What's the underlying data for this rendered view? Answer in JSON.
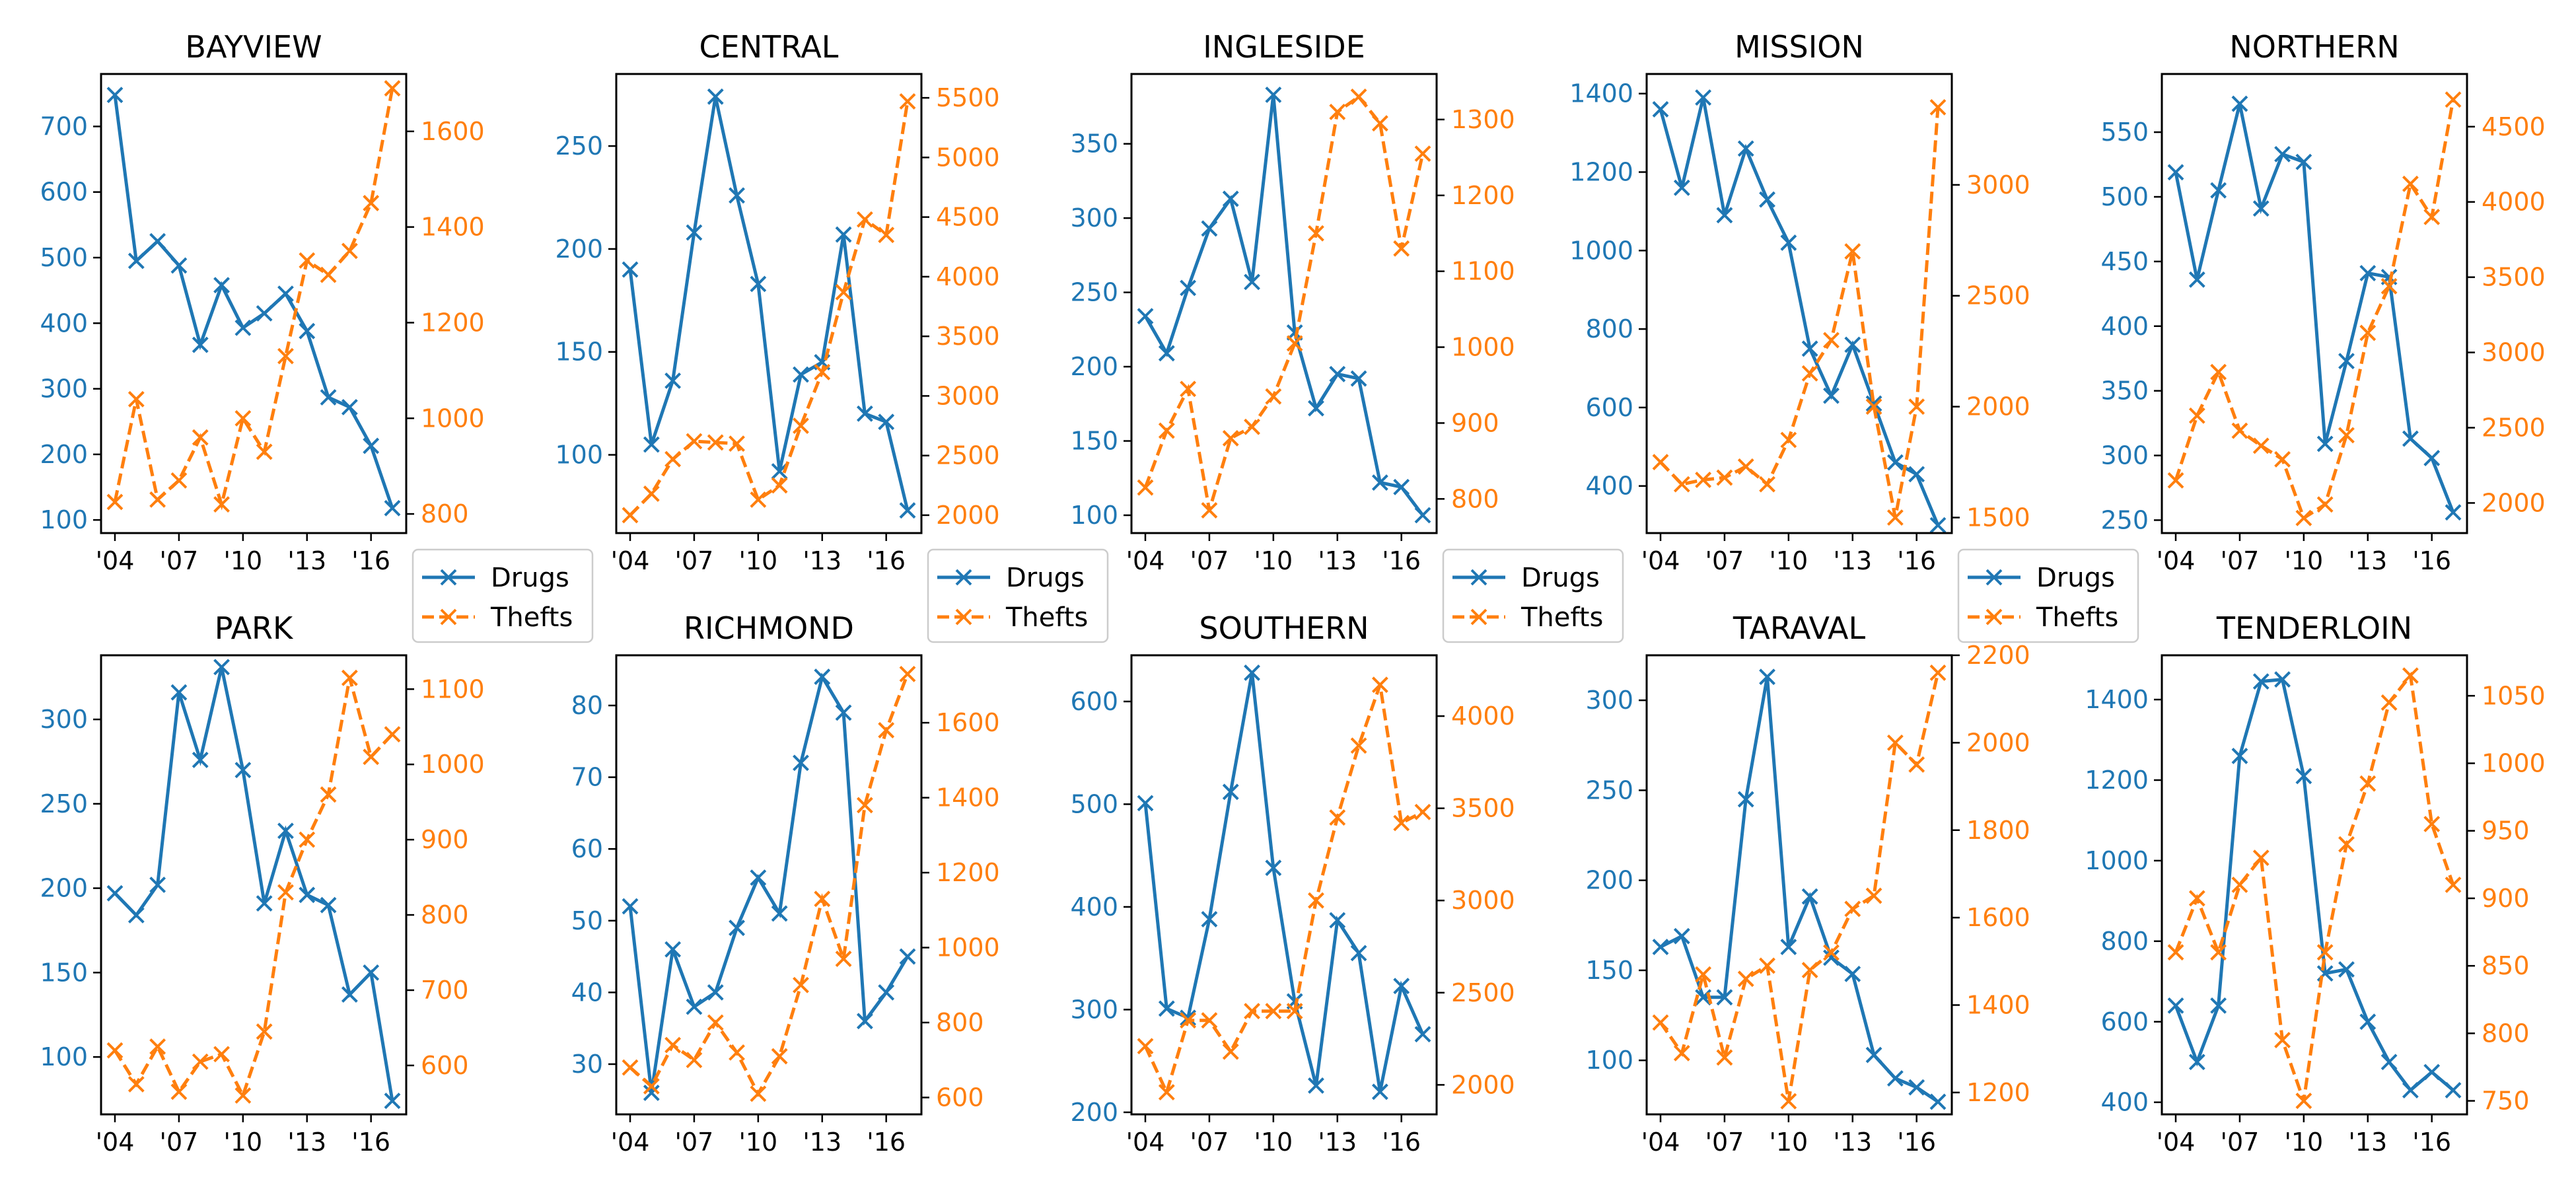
{
  "chart_data": [
    {
      "type": "line",
      "title": "BAYVIEW",
      "categories": [
        "'04",
        "'05",
        "'06",
        "'07",
        "'08",
        "'09",
        "'10",
        "'11",
        "'12",
        "'13",
        "'14",
        "'15",
        "'16",
        "'17"
      ],
      "x_tick_labels": [
        "'04",
        "'07",
        "'10",
        "'13",
        "'16"
      ],
      "left_ylim": [
        80,
        780
      ],
      "left_ticks": [
        100,
        200,
        300,
        400,
        500,
        600,
        700
      ],
      "right_ylim": [
        760,
        1720
      ],
      "right_ticks": [
        800,
        1000,
        1200,
        1400,
        1600
      ],
      "series": [
        {
          "name": "Drugs",
          "axis": "left",
          "values": [
            748,
            495,
            525,
            488,
            367,
            458,
            393,
            415,
            445,
            388,
            287,
            272,
            213,
            118
          ]
        },
        {
          "name": "Thefts",
          "axis": "right",
          "values": [
            825,
            1040,
            830,
            870,
            960,
            820,
            1000,
            930,
            1130,
            1330,
            1300,
            1350,
            1450,
            1690
          ]
        }
      ]
    },
    {
      "type": "line",
      "title": "CENTRAL",
      "categories": [
        "'04",
        "'05",
        "'06",
        "'07",
        "'08",
        "'09",
        "'10",
        "'11",
        "'12",
        "'13",
        "'14",
        "'15",
        "'16",
        "'17"
      ],
      "x_tick_labels": [
        "'04",
        "'07",
        "'10",
        "'13",
        "'16"
      ],
      "left_ylim": [
        62,
        285
      ],
      "left_ticks": [
        100,
        150,
        200,
        250
      ],
      "right_ylim": [
        1850,
        5700
      ],
      "right_ticks": [
        2000,
        2500,
        3000,
        3500,
        4000,
        4500,
        5000,
        5500
      ],
      "series": [
        {
          "name": "Drugs",
          "axis": "left",
          "values": [
            190,
            105,
            136,
            208,
            274,
            226,
            183,
            92,
            139,
            145,
            207,
            120,
            116,
            73
          ]
        },
        {
          "name": "Thefts",
          "axis": "right",
          "values": [
            2000,
            2180,
            2470,
            2620,
            2610,
            2600,
            2130,
            2250,
            2750,
            3200,
            3870,
            4480,
            4350,
            5470
          ]
        }
      ]
    },
    {
      "type": "line",
      "title": "INGLESIDE",
      "categories": [
        "'04",
        "'05",
        "'06",
        "'07",
        "'08",
        "'09",
        "'10",
        "'11",
        "'12",
        "'13",
        "'14",
        "'15",
        "'16",
        "'17"
      ],
      "x_tick_labels": [
        "'04",
        "'07",
        "'10",
        "'13",
        "'16"
      ],
      "left_ylim": [
        88,
        397
      ],
      "left_ticks": [
        100,
        150,
        200,
        250,
        300,
        350
      ],
      "right_ylim": [
        755,
        1360
      ],
      "right_ticks": [
        800,
        900,
        1000,
        1100,
        1200,
        1300
      ],
      "series": [
        {
          "name": "Drugs",
          "axis": "left",
          "values": [
            234,
            209,
            253,
            293,
            313,
            257,
            383,
            223,
            172,
            195,
            192,
            122,
            119,
            100
          ]
        },
        {
          "name": "Thefts",
          "axis": "right",
          "values": [
            815,
            890,
            945,
            785,
            880,
            895,
            935,
            1005,
            1150,
            1310,
            1330,
            1295,
            1130,
            1255
          ]
        }
      ]
    },
    {
      "type": "line",
      "title": "MISSION",
      "categories": [
        "'04",
        "'05",
        "'06",
        "'07",
        "'08",
        "'09",
        "'10",
        "'11",
        "'12",
        "'13",
        "'14",
        "'15",
        "'16",
        "'17"
      ],
      "x_tick_labels": [
        "'04",
        "'07",
        "'10",
        "'13",
        "'16"
      ],
      "left_ylim": [
        280,
        1450
      ],
      "left_ticks": [
        400,
        600,
        800,
        1000,
        1200,
        1400
      ],
      "right_ylim": [
        1430,
        3500
      ],
      "right_ticks": [
        1500,
        2000,
        2500,
        3000
      ],
      "series": [
        {
          "name": "Drugs",
          "axis": "left",
          "values": [
            1360,
            1160,
            1390,
            1090,
            1260,
            1130,
            1020,
            750,
            630,
            760,
            610,
            460,
            430,
            300
          ]
        },
        {
          "name": "Thefts",
          "axis": "right",
          "values": [
            1750,
            1650,
            1670,
            1680,
            1730,
            1650,
            1850,
            2150,
            2300,
            2700,
            2000,
            1500,
            2000,
            3350
          ]
        }
      ]
    },
    {
      "type": "line",
      "title": "NORTHERN",
      "categories": [
        "'04",
        "'05",
        "'06",
        "'07",
        "'08",
        "'09",
        "'10",
        "'11",
        "'12",
        "'13",
        "'14",
        "'15",
        "'16",
        "'17"
      ],
      "x_tick_labels": [
        "'04",
        "'07",
        "'10",
        "'13",
        "'16"
      ],
      "left_ylim": [
        240,
        595
      ],
      "left_ticks": [
        250,
        300,
        350,
        400,
        450,
        500,
        550
      ],
      "right_ylim": [
        1800,
        4850
      ],
      "right_ticks": [
        2000,
        2500,
        3000,
        3500,
        4000,
        4500
      ],
      "series": [
        {
          "name": "Drugs",
          "axis": "left",
          "values": [
            519,
            436,
            505,
            572,
            491,
            533,
            527,
            309,
            373,
            441,
            438,
            313,
            298,
            256
          ]
        },
        {
          "name": "Thefts",
          "axis": "right",
          "values": [
            2150,
            2580,
            2870,
            2480,
            2380,
            2290,
            1900,
            1990,
            2450,
            3130,
            3440,
            4120,
            3900,
            4680
          ]
        }
      ]
    },
    {
      "type": "line",
      "title": "PARK",
      "categories": [
        "'04",
        "'05",
        "'06",
        "'07",
        "'08",
        "'09",
        "'10",
        "'11",
        "'12",
        "'13",
        "'14",
        "'15",
        "'16",
        "'17"
      ],
      "x_tick_labels": [
        "'04",
        "'07",
        "'10",
        "'13",
        "'16"
      ],
      "left_ylim": [
        66,
        338
      ],
      "left_ticks": [
        100,
        150,
        200,
        250,
        300
      ],
      "right_ylim": [
        535,
        1145
      ],
      "right_ticks": [
        600,
        700,
        800,
        900,
        1000,
        1100
      ],
      "series": [
        {
          "name": "Drugs",
          "axis": "left",
          "values": [
            197,
            184,
            202,
            316,
            276,
            331,
            270,
            191,
            234,
            196,
            190,
            137,
            150,
            74
          ]
        },
        {
          "name": "Thefts",
          "axis": "right",
          "values": [
            620,
            575,
            625,
            565,
            605,
            615,
            560,
            645,
            830,
            900,
            960,
            1115,
            1010,
            1040
          ]
        }
      ]
    },
    {
      "type": "line",
      "title": "RICHMOND",
      "categories": [
        "'04",
        "'05",
        "'06",
        "'07",
        "'08",
        "'09",
        "'10",
        "'11",
        "'12",
        "'13",
        "'14",
        "'15",
        "'16",
        "'17"
      ],
      "x_tick_labels": [
        "'04",
        "'07",
        "'10",
        "'13",
        "'16"
      ],
      "left_ylim": [
        23,
        87
      ],
      "left_ticks": [
        30,
        40,
        50,
        60,
        70,
        80
      ],
      "right_ylim": [
        555,
        1780
      ],
      "right_ticks": [
        600,
        800,
        1000,
        1200,
        1400,
        1600
      ],
      "series": [
        {
          "name": "Drugs",
          "axis": "left",
          "values": [
            52,
            26,
            46,
            38,
            40,
            49,
            56,
            51,
            72,
            84,
            79,
            36,
            40,
            45
          ]
        },
        {
          "name": "Thefts",
          "axis": "right",
          "values": [
            680,
            630,
            740,
            700,
            800,
            720,
            610,
            710,
            900,
            1130,
            970,
            1380,
            1580,
            1730
          ]
        }
      ]
    },
    {
      "type": "line",
      "title": "SOUTHERN",
      "categories": [
        "'04",
        "'05",
        "'06",
        "'07",
        "'08",
        "'09",
        "'10",
        "'11",
        "'12",
        "'13",
        "'14",
        "'15",
        "'16",
        "'17"
      ],
      "x_tick_labels": [
        "'04",
        "'07",
        "'10",
        "'13",
        "'16"
      ],
      "left_ylim": [
        198,
        645
      ],
      "left_ticks": [
        200,
        300,
        400,
        500,
        600
      ],
      "right_ylim": [
        1840,
        4330
      ],
      "right_ticks": [
        2000,
        2500,
        3000,
        3500,
        4000
      ],
      "series": [
        {
          "name": "Drugs",
          "axis": "left",
          "values": [
            501,
            301,
            292,
            388,
            512,
            628,
            438,
            308,
            226,
            387,
            355,
            220,
            323,
            276
          ]
        },
        {
          "name": "Thefts",
          "axis": "right",
          "values": [
            2210,
            1960,
            2350,
            2350,
            2180,
            2400,
            2400,
            2400,
            3000,
            3450,
            3840,
            4170,
            3420,
            3480
          ]
        }
      ]
    },
    {
      "type": "line",
      "title": "TARAVAL",
      "categories": [
        "'04",
        "'05",
        "'06",
        "'07",
        "'08",
        "'09",
        "'10",
        "'11",
        "'12",
        "'13",
        "'14",
        "'15",
        "'16",
        "'17"
      ],
      "x_tick_labels": [
        "'04",
        "'07",
        "'10",
        "'13",
        "'16"
      ],
      "left_ylim": [
        70,
        325
      ],
      "left_ticks": [
        100,
        150,
        200,
        250,
        300
      ],
      "right_ylim": [
        1150,
        2200
      ],
      "right_ticks": [
        1200,
        1400,
        1600,
        1800,
        2000,
        2200
      ],
      "series": [
        {
          "name": "Drugs",
          "axis": "left",
          "values": [
            163,
            169,
            135,
            135,
            245,
            313,
            163,
            191,
            157,
            148,
            103,
            90,
            85,
            77
          ]
        },
        {
          "name": "Thefts",
          "axis": "right",
          "values": [
            1360,
            1290,
            1470,
            1280,
            1460,
            1490,
            1180,
            1480,
            1520,
            1620,
            1650,
            2000,
            1950,
            2160
          ]
        }
      ]
    },
    {
      "type": "line",
      "title": "TENDERLOIN",
      "categories": [
        "'04",
        "'05",
        "'06",
        "'07",
        "'08",
        "'09",
        "'10",
        "'11",
        "'12",
        "'13",
        "'14",
        "'15",
        "'16",
        "'17"
      ],
      "x_tick_labels": [
        "'04",
        "'07",
        "'10",
        "'13",
        "'16"
      ],
      "left_ylim": [
        370,
        1510
      ],
      "left_ticks": [
        400,
        600,
        800,
        1000,
        1200,
        1400
      ],
      "right_ylim": [
        740,
        1080
      ],
      "right_ticks": [
        750,
        800,
        850,
        900,
        950,
        1000,
        1050
      ],
      "series": [
        {
          "name": "Drugs",
          "axis": "left",
          "values": [
            640,
            500,
            640,
            1260,
            1445,
            1450,
            1210,
            720,
            730,
            600,
            500,
            430,
            475,
            430
          ]
        },
        {
          "name": "Thefts",
          "axis": "right",
          "values": [
            860,
            900,
            860,
            910,
            930,
            795,
            750,
            860,
            940,
            985,
            1045,
            1065,
            955,
            910
          ]
        }
      ]
    }
  ],
  "legend": {
    "drugs_label": "Drugs",
    "thefts_label": "Thefts"
  },
  "colors": {
    "drugs": "#1f77b4",
    "thefts": "#ff7f0e",
    "axis": "#000000"
  }
}
